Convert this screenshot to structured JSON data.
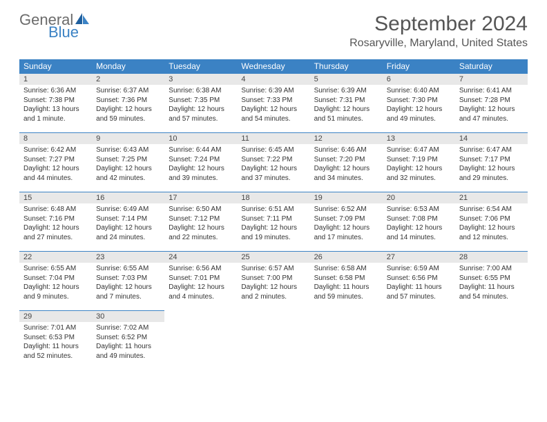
{
  "logo": {
    "part1": "General",
    "part2": "Blue"
  },
  "title": "September 2024",
  "location": "Rosaryville, Maryland, United States",
  "colors": {
    "header_bg": "#3b82c4",
    "header_text": "#ffffff",
    "daynum_bg": "#e8e8e8",
    "border": "#3b82c4",
    "text": "#333333",
    "logo_gray": "#6b6b6b",
    "logo_blue": "#3b82c4"
  },
  "weekdays": [
    "Sunday",
    "Monday",
    "Tuesday",
    "Wednesday",
    "Thursday",
    "Friday",
    "Saturday"
  ],
  "days": [
    {
      "n": 1,
      "sunrise": "6:36 AM",
      "sunset": "7:38 PM",
      "daylight": "13 hours and 1 minute."
    },
    {
      "n": 2,
      "sunrise": "6:37 AM",
      "sunset": "7:36 PM",
      "daylight": "12 hours and 59 minutes."
    },
    {
      "n": 3,
      "sunrise": "6:38 AM",
      "sunset": "7:35 PM",
      "daylight": "12 hours and 57 minutes."
    },
    {
      "n": 4,
      "sunrise": "6:39 AM",
      "sunset": "7:33 PM",
      "daylight": "12 hours and 54 minutes."
    },
    {
      "n": 5,
      "sunrise": "6:39 AM",
      "sunset": "7:31 PM",
      "daylight": "12 hours and 51 minutes."
    },
    {
      "n": 6,
      "sunrise": "6:40 AM",
      "sunset": "7:30 PM",
      "daylight": "12 hours and 49 minutes."
    },
    {
      "n": 7,
      "sunrise": "6:41 AM",
      "sunset": "7:28 PM",
      "daylight": "12 hours and 47 minutes."
    },
    {
      "n": 8,
      "sunrise": "6:42 AM",
      "sunset": "7:27 PM",
      "daylight": "12 hours and 44 minutes."
    },
    {
      "n": 9,
      "sunrise": "6:43 AM",
      "sunset": "7:25 PM",
      "daylight": "12 hours and 42 minutes."
    },
    {
      "n": 10,
      "sunrise": "6:44 AM",
      "sunset": "7:24 PM",
      "daylight": "12 hours and 39 minutes."
    },
    {
      "n": 11,
      "sunrise": "6:45 AM",
      "sunset": "7:22 PM",
      "daylight": "12 hours and 37 minutes."
    },
    {
      "n": 12,
      "sunrise": "6:46 AM",
      "sunset": "7:20 PM",
      "daylight": "12 hours and 34 minutes."
    },
    {
      "n": 13,
      "sunrise": "6:47 AM",
      "sunset": "7:19 PM",
      "daylight": "12 hours and 32 minutes."
    },
    {
      "n": 14,
      "sunrise": "6:47 AM",
      "sunset": "7:17 PM",
      "daylight": "12 hours and 29 minutes."
    },
    {
      "n": 15,
      "sunrise": "6:48 AM",
      "sunset": "7:16 PM",
      "daylight": "12 hours and 27 minutes."
    },
    {
      "n": 16,
      "sunrise": "6:49 AM",
      "sunset": "7:14 PM",
      "daylight": "12 hours and 24 minutes."
    },
    {
      "n": 17,
      "sunrise": "6:50 AM",
      "sunset": "7:12 PM",
      "daylight": "12 hours and 22 minutes."
    },
    {
      "n": 18,
      "sunrise": "6:51 AM",
      "sunset": "7:11 PM",
      "daylight": "12 hours and 19 minutes."
    },
    {
      "n": 19,
      "sunrise": "6:52 AM",
      "sunset": "7:09 PM",
      "daylight": "12 hours and 17 minutes."
    },
    {
      "n": 20,
      "sunrise": "6:53 AM",
      "sunset": "7:08 PM",
      "daylight": "12 hours and 14 minutes."
    },
    {
      "n": 21,
      "sunrise": "6:54 AM",
      "sunset": "7:06 PM",
      "daylight": "12 hours and 12 minutes."
    },
    {
      "n": 22,
      "sunrise": "6:55 AM",
      "sunset": "7:04 PM",
      "daylight": "12 hours and 9 minutes."
    },
    {
      "n": 23,
      "sunrise": "6:55 AM",
      "sunset": "7:03 PM",
      "daylight": "12 hours and 7 minutes."
    },
    {
      "n": 24,
      "sunrise": "6:56 AM",
      "sunset": "7:01 PM",
      "daylight": "12 hours and 4 minutes."
    },
    {
      "n": 25,
      "sunrise": "6:57 AM",
      "sunset": "7:00 PM",
      "daylight": "12 hours and 2 minutes."
    },
    {
      "n": 26,
      "sunrise": "6:58 AM",
      "sunset": "6:58 PM",
      "daylight": "11 hours and 59 minutes."
    },
    {
      "n": 27,
      "sunrise": "6:59 AM",
      "sunset": "6:56 PM",
      "daylight": "11 hours and 57 minutes."
    },
    {
      "n": 28,
      "sunrise": "7:00 AM",
      "sunset": "6:55 PM",
      "daylight": "11 hours and 54 minutes."
    },
    {
      "n": 29,
      "sunrise": "7:01 AM",
      "sunset": "6:53 PM",
      "daylight": "11 hours and 52 minutes."
    },
    {
      "n": 30,
      "sunrise": "7:02 AM",
      "sunset": "6:52 PM",
      "daylight": "11 hours and 49 minutes."
    }
  ],
  "labels": {
    "sunrise": "Sunrise:",
    "sunset": "Sunset:",
    "daylight": "Daylight:"
  },
  "start_weekday": 0,
  "total_cells": 35
}
